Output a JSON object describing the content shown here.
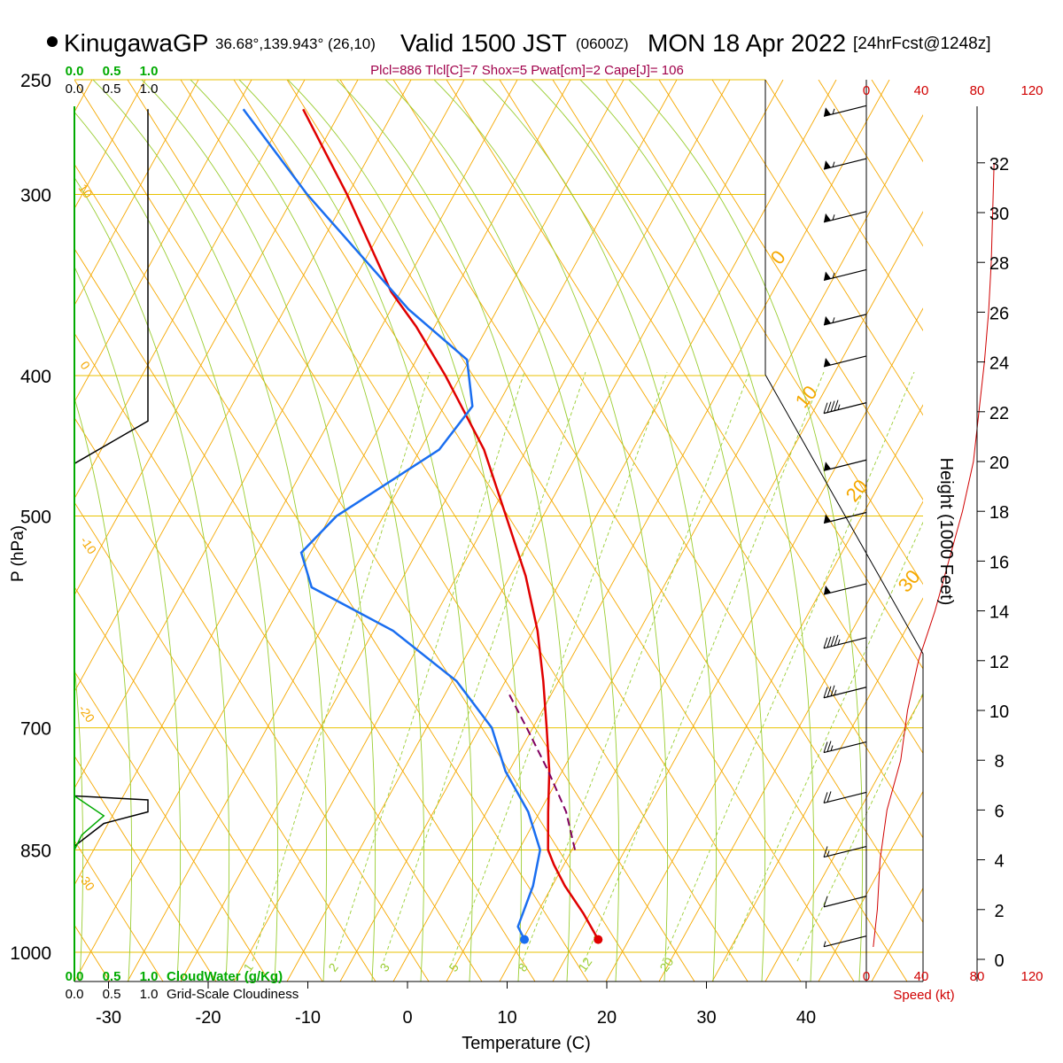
{
  "header": {
    "station": "KinugawaGP",
    "location": "36.68°,139.943° (26,10)",
    "valid": "Valid 1500 JST",
    "utc": "(0600Z)",
    "date": "MON 18 Apr 2022",
    "forecast": "[24hrFcst@1248z]",
    "indices": "Plcl=886 Tlcl[C]=7 Shox=5 Pwat[cm]=2 Cape[J]= 106"
  },
  "labels": {
    "ylabel": "P (hPa)",
    "xlabel": "Temperature (C)",
    "height_label": "Height (1000 Feet)",
    "speed_label": "Speed (kt)",
    "cloudwater_label": "CloudWater (g/Kg)",
    "cloudiness_label": "Grid-Scale Cloudiness",
    "scale_ticks": [
      "0.0",
      "0.5",
      "1.0"
    ],
    "scale_ticks_top": [
      "0.0",
      "0.5",
      "1.0"
    ],
    "scale_ticks_top2": [
      "0.0",
      "0.5",
      "1.0"
    ],
    "speed_ticks_top": [
      "0",
      "40",
      "80",
      "120"
    ],
    "speed_ticks_bottom": [
      "0",
      "40",
      "80",
      "120"
    ]
  },
  "colors": {
    "isobar": "#e8c200",
    "dry_adiabat": "#f5a800",
    "moist_adiabat": "#9acd32",
    "mixing_ratio": "#9acd32",
    "temperature": "#e00000",
    "dewpoint": "#1a6ef0",
    "parcel": "#800060",
    "cloud": "#00aa00",
    "speed": "#d00000"
  },
  "chart_data": {
    "type": "skew-t",
    "pressure_levels": [
      250,
      300,
      400,
      500,
      700,
      850,
      1000
    ],
    "pressure_tick_labels": [
      "250",
      "300",
      "400",
      "500",
      "700",
      "850",
      "1000"
    ],
    "temperature_ticks": [
      -30,
      -20,
      -10,
      0,
      10,
      20,
      30,
      40
    ],
    "temperature_tick_labels": [
      "-30",
      "-20",
      "-10",
      "0",
      "10",
      "20",
      "30",
      "40"
    ],
    "height_ticks_kft": [
      0,
      2,
      4,
      6,
      8,
      10,
      12,
      14,
      16,
      18,
      20,
      22,
      24,
      26,
      28,
      30,
      32
    ],
    "height_tick_labels": [
      "0",
      "2",
      "4",
      "6",
      "8",
      "10",
      "12",
      "14",
      "16",
      "18",
      "20",
      "22",
      "24",
      "26",
      "28",
      "30",
      "32"
    ],
    "mixing_ratio_labels": [
      "1",
      "2",
      "3",
      "5",
      "8",
      "12",
      "20"
    ],
    "isotherm_labels_right": [
      "0",
      "10",
      "20",
      "30"
    ],
    "isotherm_labels_left": [
      "10",
      "0",
      "-10",
      "-20",
      "-30"
    ],
    "temperature_profile": [
      {
        "p": 980,
        "t": 18.6
      },
      {
        "p": 940,
        "t": 16.0
      },
      {
        "p": 900,
        "t": 13.0
      },
      {
        "p": 870,
        "t": 11.0
      },
      {
        "p": 850,
        "t": 9.8
      },
      {
        "p": 800,
        "t": 8.2
      },
      {
        "p": 750,
        "t": 6.6
      },
      {
        "p": 700,
        "t": 4.5
      },
      {
        "p": 650,
        "t": 2.2
      },
      {
        "p": 600,
        "t": -0.5
      },
      {
        "p": 550,
        "t": -4.0
      },
      {
        "p": 500,
        "t": -8.5
      },
      {
        "p": 450,
        "t": -13.5
      },
      {
        "p": 400,
        "t": -20.5
      },
      {
        "p": 370,
        "t": -25.5
      },
      {
        "p": 350,
        "t": -29.5
      },
      {
        "p": 300,
        "t": -38.0
      },
      {
        "p": 262,
        "t": -46.0
      }
    ],
    "dewpoint_profile": [
      {
        "p": 980,
        "t": 11.2
      },
      {
        "p": 960,
        "t": 10.0
      },
      {
        "p": 900,
        "t": 9.8
      },
      {
        "p": 850,
        "t": 9.0
      },
      {
        "p": 800,
        "t": 6.2
      },
      {
        "p": 750,
        "t": 2.2
      },
      {
        "p": 700,
        "t": -1.0
      },
      {
        "p": 650,
        "t": -6.5
      },
      {
        "p": 600,
        "t": -15.0
      },
      {
        "p": 560,
        "t": -25.0
      },
      {
        "p": 530,
        "t": -27.5
      },
      {
        "p": 500,
        "t": -25.5
      },
      {
        "p": 450,
        "t": -18.0
      },
      {
        "p": 420,
        "t": -16.5
      },
      {
        "p": 390,
        "t": -19.0
      },
      {
        "p": 360,
        "t": -27.0
      },
      {
        "p": 300,
        "t": -42.0
      },
      {
        "p": 262,
        "t": -52.0
      }
    ],
    "parcel_profile": [
      {
        "p": 850,
        "t": 12.5
      },
      {
        "p": 800,
        "t": 10.0
      },
      {
        "p": 750,
        "t": 6.5
      },
      {
        "p": 700,
        "t": 2.5
      },
      {
        "p": 660,
        "t": -1.0
      }
    ],
    "surface_temperature": {
      "p": 980,
      "t": 18.6
    },
    "surface_dewpoint": {
      "p": 980,
      "t": 11.2
    },
    "cloudiness": [
      {
        "p": 780,
        "cover": 0.0
      },
      {
        "p": 785,
        "cover": 1.0
      },
      {
        "p": 800,
        "cover": 1.0
      },
      {
        "p": 815,
        "cover": 0.4
      },
      {
        "p": 845,
        "cover": 0.0
      },
      {
        "p": 860,
        "cover": 0.0
      }
    ],
    "cloudwater": [
      {
        "p": 780,
        "q": 0.0
      },
      {
        "p": 805,
        "q": 0.4
      },
      {
        "p": 830,
        "q": 0.1
      },
      {
        "p": 850,
        "q": 0.0
      }
    ],
    "upper_cloudiness": [
      {
        "p": 262,
        "cover": 1.0
      },
      {
        "p": 430,
        "cover": 1.0
      },
      {
        "p": 460,
        "cover": 0.0
      }
    ],
    "wind_speed_profile_kt": [
      {
        "h": 0.5,
        "s": 5
      },
      {
        "h": 2,
        "s": 8
      },
      {
        "h": 4,
        "s": 10
      },
      {
        "h": 6,
        "s": 15
      },
      {
        "h": 8,
        "s": 25
      },
      {
        "h": 10,
        "s": 30
      },
      {
        "h": 12,
        "s": 38
      },
      {
        "h": 14,
        "s": 50
      },
      {
        "h": 16,
        "s": 60
      },
      {
        "h": 18,
        "s": 70
      },
      {
        "h": 20,
        "s": 78
      },
      {
        "h": 22,
        "s": 82
      },
      {
        "h": 24,
        "s": 86
      },
      {
        "h": 26,
        "s": 89
      },
      {
        "h": 28,
        "s": 91
      },
      {
        "h": 30,
        "s": 92
      },
      {
        "h": 32,
        "s": 93
      }
    ],
    "wind_barbs": [
      {
        "p": 262,
        "speed": 55
      },
      {
        "p": 285,
        "speed": 55
      },
      {
        "p": 310,
        "speed": 55
      },
      {
        "p": 340,
        "speed": 55
      },
      {
        "p": 365,
        "speed": 55
      },
      {
        "p": 390,
        "speed": 50
      },
      {
        "p": 420,
        "speed": 45
      },
      {
        "p": 460,
        "speed": 50
      },
      {
        "p": 500,
        "speed": 50
      },
      {
        "p": 560,
        "speed": 50
      },
      {
        "p": 610,
        "speed": 45
      },
      {
        "p": 660,
        "speed": 35
      },
      {
        "p": 720,
        "speed": 25
      },
      {
        "p": 780,
        "speed": 20
      },
      {
        "p": 850,
        "speed": 15
      },
      {
        "p": 920,
        "speed": 10
      },
      {
        "p": 980,
        "speed": 5
      }
    ]
  }
}
